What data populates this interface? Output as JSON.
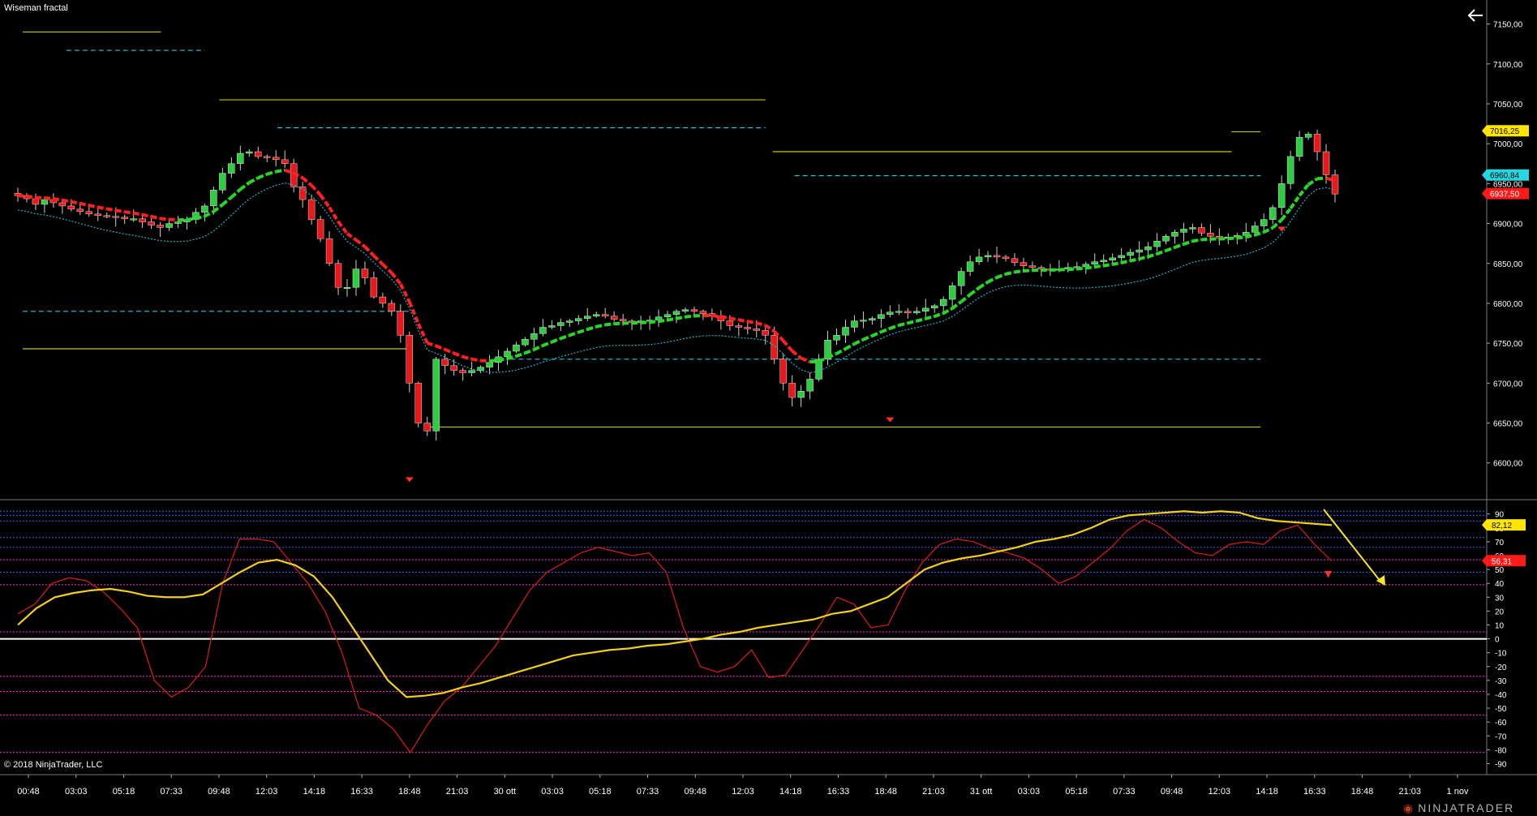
{
  "window": {
    "title": "Wiseman fractal",
    "copyright": "© 2018 NinjaTrader, LLC",
    "brand": "NINJATRADER",
    "back_icon": "arrow-left-icon"
  },
  "colors": {
    "background": "#000000",
    "up_candle": "#2ecc40",
    "down_candle": "#e8191b",
    "fractal_line": "#c8c800",
    "fractal_dash": "#26c6da",
    "ma_red": "#ff2020",
    "ma_green": "#29d629",
    "envelope": "#1fb5c9",
    "osc_fast": "#d01c1c",
    "osc_slow": "#f2cf1f",
    "grid_blue": "#3a5cff",
    "grid_magenta": "#ff2bd6",
    "arrow": "#f5e62a"
  },
  "chart_data": [
    {
      "type": "candlestick",
      "title": "",
      "x_tick_labels": [
        "00:48",
        "03:03",
        "05:18",
        "07:33",
        "09:48",
        "12:03",
        "14:18",
        "16:33",
        "18:48",
        "21:03",
        "30 ott",
        "03:03",
        "05:18",
        "07:33",
        "09:48",
        "12:03",
        "14:18",
        "16:33",
        "18:48",
        "21:03",
        "31 ott",
        "03:03",
        "05:18",
        "07:33",
        "09:48",
        "12:03",
        "14:18",
        "16:33",
        "18:48",
        "21:03",
        "1 nov"
      ],
      "y_ticks": [
        "7150,00",
        "7100,00",
        "7050,00",
        "7000,00",
        "6950,00",
        "6900,00",
        "6850,00",
        "6800,00",
        "6750,00",
        "6700,00",
        "6650,00",
        "6600,00"
      ],
      "ylim": [
        6555,
        7175
      ],
      "price_markers": [
        {
          "label": "7016,25",
          "value": 7016.25,
          "color": "#ffe500"
        },
        {
          "label": "6960,84",
          "value": 6960.84,
          "color": "#26d6e0"
        },
        {
          "label": "6937,50",
          "value": 6937.5,
          "color": "#ff1a1a"
        }
      ],
      "close_path": [
        6935,
        6931,
        6924,
        6930,
        6926,
        6922,
        6918,
        6915,
        6912,
        6910,
        6909,
        6908,
        6906,
        6906,
        6902,
        6898,
        6895,
        6900,
        6902,
        6905,
        6914,
        6922,
        6942,
        6963,
        6975,
        6988,
        6990,
        6984,
        6983,
        6980,
        6975,
        6946,
        6930,
        6905,
        6881,
        6850,
        6820,
        6820,
        6843,
        6832,
        6808,
        6800,
        6790,
        6760,
        6700,
        6650,
        6640,
        6730,
        6722,
        6716,
        6713,
        6716,
        6720,
        6726,
        6733,
        6740,
        6748,
        6755,
        6762,
        6770,
        6772,
        6776,
        6778,
        6781,
        6784,
        6786,
        6784,
        6780,
        6778,
        6776,
        6778,
        6779,
        6783,
        6786,
        6790,
        6792,
        6790,
        6787,
        6784,
        6778,
        6772,
        6770,
        6768,
        6766,
        6760,
        6730,
        6700,
        6682,
        6690,
        6705,
        6730,
        6754,
        6760,
        6770,
        6778,
        6779,
        6781,
        6786,
        6789,
        6790,
        6788,
        6790,
        6794,
        6797,
        6805,
        6822,
        6840,
        6852,
        6858,
        6860,
        6858,
        6856,
        6851,
        6847,
        6845,
        6843,
        6842,
        6843,
        6845,
        6846,
        6849,
        6852,
        6854,
        6857,
        6860,
        6864,
        6867,
        6871,
        6878,
        6884,
        6889,
        6893,
        6895,
        6888,
        6884,
        6882,
        6883,
        6885,
        6889,
        6897,
        6905,
        6920,
        6950,
        6984,
        7008,
        7012,
        6990,
        6961,
        6937
      ],
      "fractal_yellow": [
        {
          "y": 7140,
          "x_from": 0.01,
          "x_to": 0.105
        },
        {
          "y": 7055,
          "x_from": 0.145,
          "x_to": 0.52
        },
        {
          "y": 6990,
          "x_from": 0.525,
          "x_to": 0.84
        },
        {
          "y": 7015,
          "x_from": 0.84,
          "x_to": 0.86
        },
        {
          "y": 6743,
          "x_from": 0.01,
          "x_to": 0.275
        },
        {
          "y": 6645,
          "x_from": 0.29,
          "x_to": 0.86
        }
      ],
      "fractal_cyan": [
        {
          "y": 7117,
          "x_from": 0.04,
          "x_to": 0.135
        },
        {
          "y": 7020,
          "x_from": 0.185,
          "x_to": 0.52
        },
        {
          "y": 6960,
          "x_from": 0.54,
          "x_to": 0.86
        },
        {
          "y": 6790,
          "x_from": 0.01,
          "x_to": 0.275
        },
        {
          "y": 6730,
          "x_from": 0.345,
          "x_to": 0.86
        }
      ]
    },
    {
      "type": "line",
      "title": "",
      "y_ticks": [
        "90",
        "80",
        "70",
        "60",
        "50",
        "40",
        "30",
        "20",
        "10",
        "0",
        "-10",
        "-20",
        "-30",
        "-40",
        "-50",
        "-60",
        "-70",
        "-80",
        "-90"
      ],
      "ylim": [
        -95,
        98
      ],
      "value_markers": [
        {
          "label": "82,12",
          "value": 82.12,
          "color": "#ffe500"
        },
        {
          "label": "56,31",
          "value": 56.31,
          "color": "#ff1a1a"
        }
      ],
      "series": [
        {
          "key": "fast",
          "values": [
            18,
            25,
            40,
            44,
            42,
            34,
            22,
            8,
            -30,
            -42,
            -35,
            -20,
            40,
            72,
            72,
            70,
            55,
            40,
            20,
            -10,
            -50,
            -55,
            -65,
            -82,
            -62,
            -45,
            -35,
            -20,
            -5,
            15,
            35,
            48,
            55,
            62,
            66,
            63,
            60,
            62,
            48,
            8,
            -20,
            -24,
            -20,
            -8,
            -28,
            -26,
            -8,
            10,
            30,
            25,
            8,
            10,
            35,
            55,
            68,
            72,
            70,
            65,
            62,
            58,
            50,
            40,
            45,
            55,
            65,
            78,
            86,
            80,
            70,
            62,
            60,
            68,
            70,
            68,
            78,
            82,
            68,
            56
          ]
        },
        {
          "key": "slow",
          "values": [
            10,
            22,
            30,
            33,
            35,
            36,
            34,
            31,
            30,
            30,
            32,
            40,
            48,
            55,
            57,
            53,
            45,
            30,
            10,
            -10,
            -30,
            -42,
            -41,
            -39,
            -35,
            -32,
            -28,
            -24,
            -20,
            -16,
            -12,
            -10,
            -8,
            -7,
            -5,
            -4,
            -2,
            0,
            3,
            5,
            8,
            10,
            12,
            14,
            18,
            20,
            25,
            30,
            40,
            50,
            55,
            58,
            60,
            63,
            66,
            70,
            72,
            75,
            80,
            86,
            89,
            90,
            91,
            92,
            91,
            92,
            91,
            87,
            85,
            84,
            83,
            82
          ]
        }
      ],
      "levels": [
        {
          "y": 92,
          "color": "#3a5cff"
        },
        {
          "y": 89,
          "color": "#3a5cff"
        },
        {
          "y": 85,
          "color": "#3a5cff"
        },
        {
          "y": 73,
          "color": "#3a5cff"
        },
        {
          "y": 66,
          "color": "#3a5cff"
        },
        {
          "y": 48,
          "color": "#3a5cff"
        },
        {
          "y": 57,
          "color": "#ff2bd6"
        },
        {
          "y": 39,
          "color": "#ff2bd6"
        },
        {
          "y": 5,
          "color": "#ff2bd6"
        },
        {
          "y": -27,
          "color": "#ff2bd6"
        },
        {
          "y": -38,
          "color": "#ff2bd6"
        },
        {
          "y": -55,
          "color": "#ff2bd6"
        },
        {
          "y": -82,
          "color": "#ff2bd6"
        }
      ]
    }
  ]
}
